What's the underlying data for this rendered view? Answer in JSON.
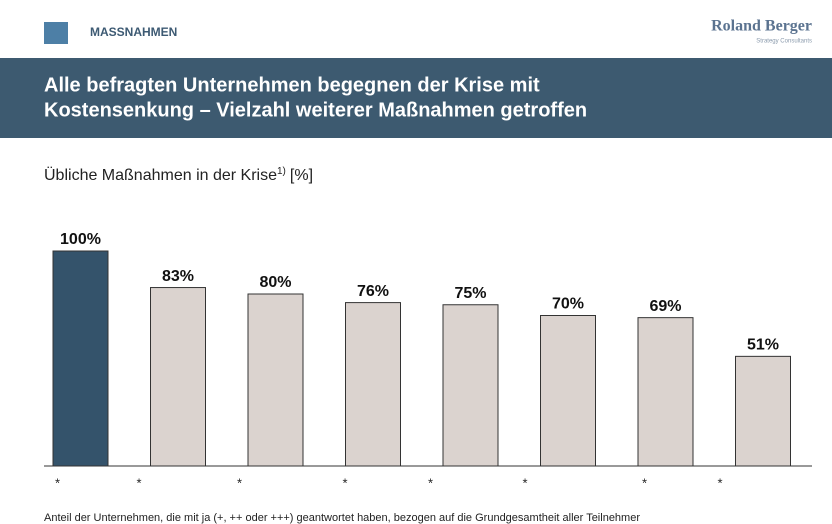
{
  "header": {
    "section": "MASSNAHMEN",
    "logo": "Roland Berger",
    "logo_sub": "Strategy Consultants"
  },
  "chart_data": {
    "type": "bar",
    "title": [
      "Alle befragten Unternehmen begegnen der Krise mit",
      "Kostensenkung – Vielzahl weiterer Maßnahmen getroffen"
    ],
    "subtitle": "Übliche Maßnahmen in der Krise",
    "footnote_ref": "1)",
    "unit": "[%]",
    "categories": [
      "*",
      "*",
      "*",
      "*",
      "*",
      "*",
      "*",
      "*"
    ],
    "values": [
      100,
      83,
      80,
      76,
      75,
      70,
      69,
      51
    ],
    "value_labels": [
      "100%",
      "83%",
      "80%",
      "76%",
      "75%",
      "70%",
      "69%",
      "51%"
    ],
    "colors": [
      "#34536b",
      "#dbd3cf",
      "#dbd3cf",
      "#dbd3cf",
      "#dbd3cf",
      "#dbd3cf",
      "#dbd3cf",
      "#dbd3cf"
    ],
    "ylim": [
      0,
      100
    ],
    "footnote": "Anteil der Unternehmen, die mit ja (+, ++ oder +++) geantwortet haben, bezogen auf die Grundgesamtheit aller Teilnehmer"
  }
}
